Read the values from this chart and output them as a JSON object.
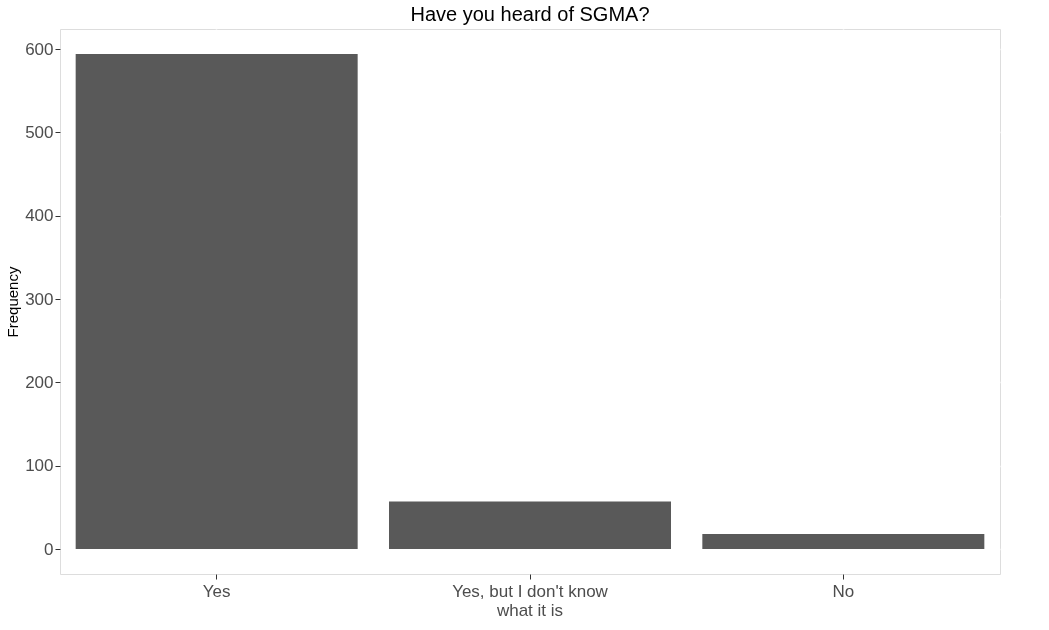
{
  "chart_data": {
    "type": "bar",
    "title": "Have you heard of SGMA?",
    "ylabel": "Frequency",
    "categories": [
      "Yes",
      "Yes, but I don't know\nwhat it is",
      "No"
    ],
    "values": [
      594,
      57,
      18
    ],
    "color": "#595959",
    "ylim": [
      -30,
      624
    ],
    "yticks": [
      0,
      100,
      200,
      300,
      400,
      500,
      600
    ],
    "grid": true
  }
}
